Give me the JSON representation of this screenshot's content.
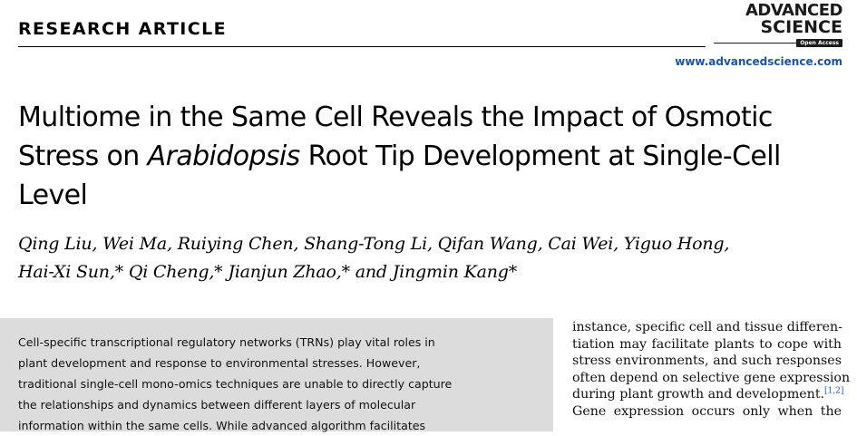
{
  "header": {
    "section_label": "RESEARCH ARTICLE",
    "journal_logo": {
      "line1": "ADVANCED",
      "line2": "SCIENCE",
      "badge": "Open Access"
    },
    "website": "www.advancedscience.com"
  },
  "title": {
    "line1": "Multiome in the Same Cell Reveals the Impact of Osmotic",
    "line2_pre": "Stress on ",
    "line2_italic": "Arabidopsis",
    "line2_post": " Root Tip Development at Single-Cell",
    "line3": "Level"
  },
  "authors": {
    "line1": "Qing Liu, Wei Ma, Ruiying Chen, Shang-Tong Li, Qifan Wang, Cai Wei, Yiguo Hong,",
    "line2": "Hai-Xi Sun,* Qi Cheng,* Jianjun Zhao,* and Jingmin Kang*"
  },
  "abstract": {
    "lines": [
      "Cell-specific transcriptional regulatory networks (TRNs) play vital roles in",
      "plant development and response to environmental stresses. However,",
      "traditional single-cell mono-omics techniques are unable to directly capture",
      "the relationships and dynamics between different layers of molecular",
      "information within the same cells. While advanced algorithm facilitates"
    ]
  },
  "body_column": {
    "lines": [
      "instance, specific cell and tissue differen-",
      "tiation may facilitate plants to cope with",
      "stress environments, and such responses",
      "often depend on selective gene expression",
      "during plant growth and development.",
      "Gene expression occurs only when the"
    ],
    "citation": "[1,2]"
  },
  "colors": {
    "link_blue": "#1c54a3",
    "abstract_background": "#dcdcdc"
  }
}
